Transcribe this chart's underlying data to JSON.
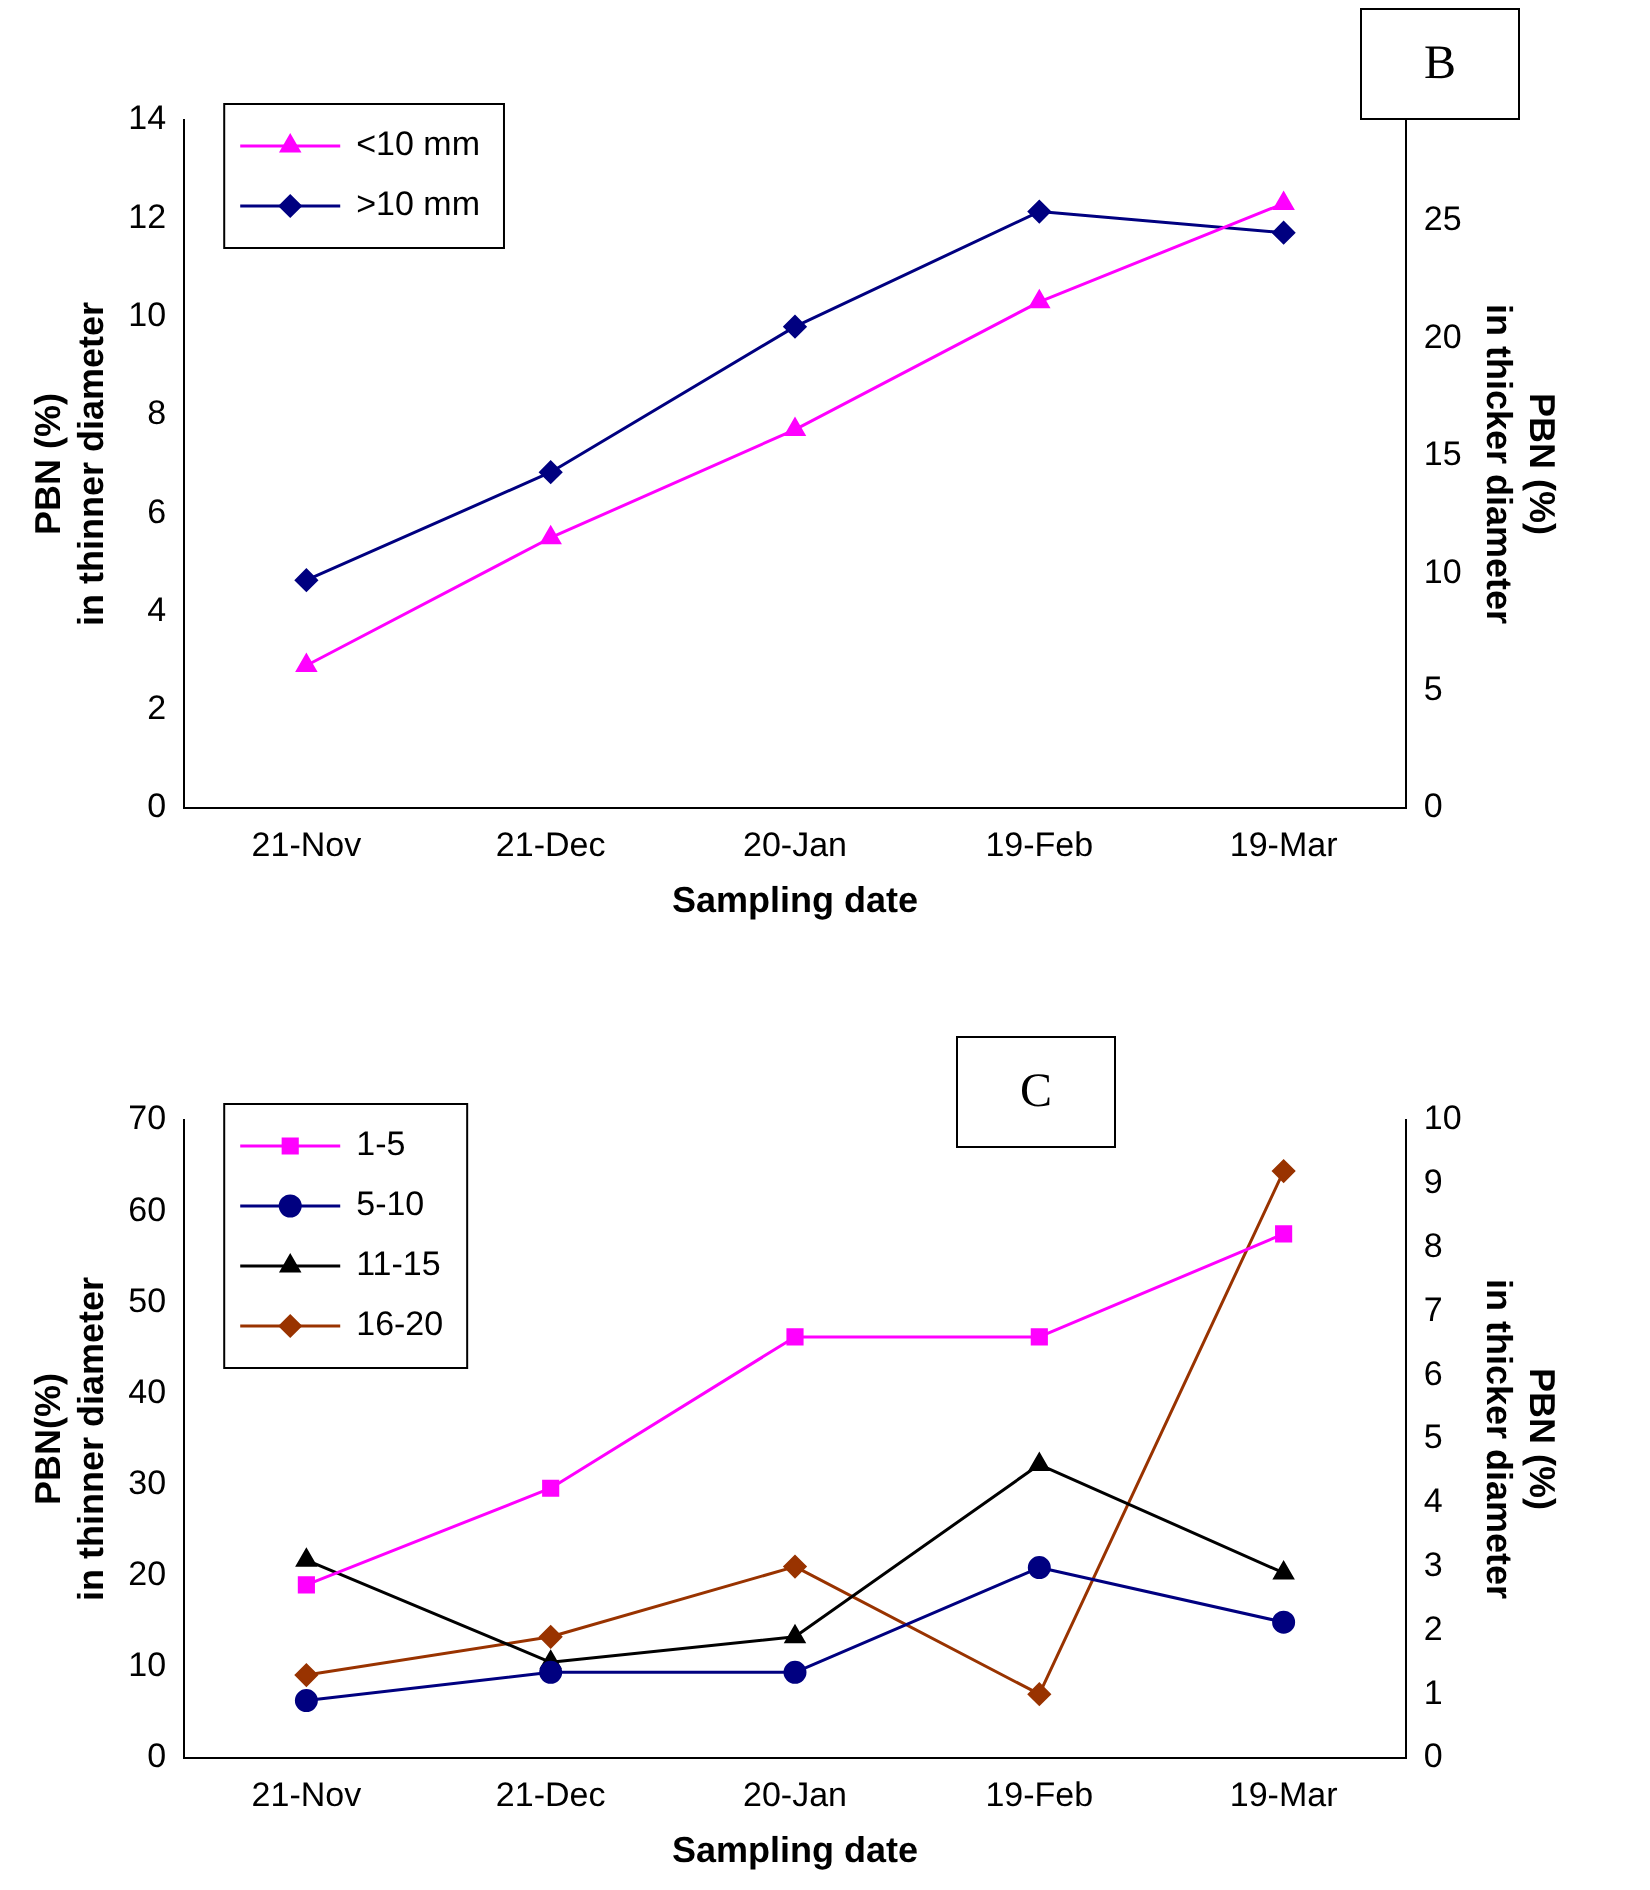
{
  "chart_data": [
    {
      "type": "line",
      "annotations": [
        "B"
      ],
      "xlabel": "Sampling date",
      "ylabel": "PBN (%)\nin thinner diameter",
      "y2label": "PBN (%)\nin thicker diameter",
      "categories": [
        "21-Nov",
        "21-Dec",
        "20-Jan",
        "19-Feb",
        "19-Mar"
      ],
      "series": [
        {
          "name": "<10 mm",
          "color": "#ff00ff",
          "marker": "triangle",
          "values": [
            2.9,
            5.5,
            7.7,
            10.3,
            12.3
          ]
        },
        {
          "name": ">10 mm",
          "color": "#000080",
          "marker": "diamond",
          "axis": "y2",
          "values": [
            9.7,
            14.3,
            20.5,
            25.4,
            24.5
          ]
        }
      ],
      "ylim": [
        0,
        14
      ],
      "yticks": [
        0,
        2,
        4,
        6,
        8,
        10,
        12,
        14
      ],
      "y2lim": [
        0,
        29.3
      ],
      "y2ticks": [
        0,
        5,
        10,
        15,
        20,
        25
      ],
      "grid": false,
      "legend": "top left"
    },
    {
      "type": "line",
      "annotations": [
        "C"
      ],
      "xlabel": "Sampling date",
      "ylabel": "PBN(%)\nin thinner diameter",
      "y2label": "PBN (%)\nin thicker diameter",
      "categories": [
        "21-Nov",
        "21-Dec",
        "20-Jan",
        "19-Feb",
        "19-Mar"
      ],
      "series": [
        {
          "name": "1-5",
          "color": "#ff00ff",
          "marker": "square",
          "values": [
            19,
            29.6,
            46.2,
            46.2,
            57.5
          ]
        },
        {
          "name": "5-10",
          "color": "#000080",
          "marker": "circle",
          "values": [
            6.3,
            9.4,
            9.4,
            20.9,
            14.9
          ]
        },
        {
          "name": "11-15",
          "color": "#000000",
          "marker": "triangle",
          "axis": "y2",
          "values": [
            3.1,
            1.5,
            1.9,
            4.6,
            2.9
          ]
        },
        {
          "name": "16-20",
          "color": "#993300",
          "marker": "diamond",
          "axis": "y2",
          "values": [
            1.3,
            1.9,
            3.0,
            1.0,
            9.2
          ]
        }
      ],
      "ylim": [
        0,
        70
      ],
      "yticks": [
        0,
        10,
        20,
        30,
        40,
        50,
        60,
        70
      ],
      "y2lim": [
        0,
        10
      ],
      "y2ticks": [
        0,
        1,
        2,
        3,
        4,
        5,
        6,
        7,
        8,
        9,
        10
      ],
      "grid": false,
      "legend": "top left"
    }
  ]
}
